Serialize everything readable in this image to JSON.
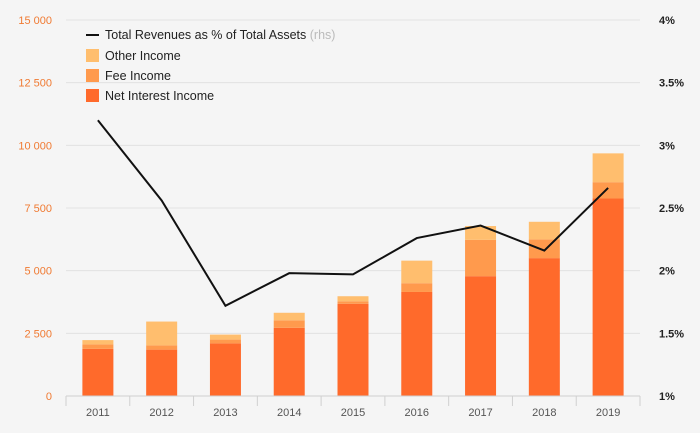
{
  "chart_data": {
    "type": "bar",
    "stacked": true,
    "categories": [
      "2011",
      "2012",
      "2013",
      "2014",
      "2015",
      "2016",
      "2017",
      "2018",
      "2019"
    ],
    "series": [
      {
        "name": "Net Interest Income",
        "type": "bar",
        "color": "#ff6a2b",
        "values": [
          1880,
          1850,
          2100,
          2720,
          3680,
          4150,
          4780,
          5500,
          7880
        ]
      },
      {
        "name": "Fee Income",
        "type": "bar",
        "color": "#ff9a4d",
        "values": [
          180,
          170,
          150,
          300,
          100,
          350,
          1450,
          750,
          650
        ]
      },
      {
        "name": "Other Income",
        "type": "bar",
        "color": "#ffbe6e",
        "values": [
          170,
          950,
          200,
          300,
          200,
          900,
          550,
          700,
          1150
        ]
      },
      {
        "name": "Total Revenues as % of Total Assets",
        "type": "line",
        "axis": "right",
        "color": "#111111",
        "values": [
          3.2,
          2.56,
          1.72,
          1.98,
          1.97,
          2.26,
          2.36,
          2.16,
          2.66
        ]
      }
    ],
    "legend_rhs_suffix": "(rhs)",
    "y_left": {
      "range": [
        0,
        15000
      ],
      "ticks": [
        0,
        2500,
        5000,
        7500,
        10000,
        12500,
        15000
      ],
      "tick_labels": [
        "0",
        "2 500",
        "5 000",
        "7 500",
        "10 000",
        "12 500",
        "15 000"
      ]
    },
    "y_right": {
      "range": [
        1,
        4
      ],
      "ticks": [
        1,
        1.5,
        2,
        2.5,
        3,
        3.5,
        4
      ],
      "tick_labels": [
        "1%",
        "1.5%",
        "2%",
        "2.5%",
        "3%",
        "3.5%",
        "4%"
      ]
    },
    "grid": true,
    "legend_position": "top-left",
    "colors": {
      "left_tick": "#f07a32",
      "right_tick": "#222222",
      "grid": "#e2e2e2",
      "background": "#f5f5f5"
    }
  }
}
